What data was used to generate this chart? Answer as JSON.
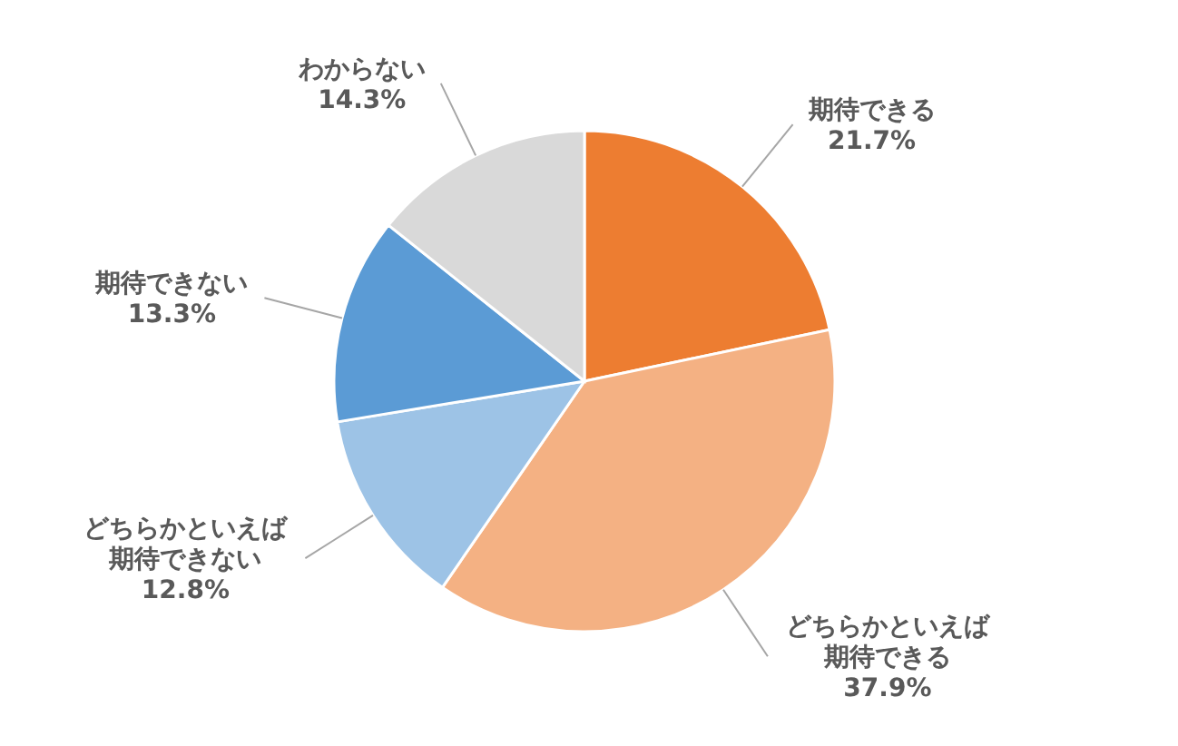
{
  "chart_data": {
    "type": "pie",
    "categories": [
      "期待できる",
      "どちらかといえば期待できる",
      "どちらかといえば期待できない",
      "期待できない",
      "わからない"
    ],
    "values": [
      21.7,
      37.9,
      12.8,
      13.3,
      14.3
    ],
    "colors": [
      "#ed7d31",
      "#f4b183",
      "#9dc3e6",
      "#5b9bd5",
      "#d9d9d9"
    ],
    "value_labels": [
      "21.7%",
      "37.9%",
      "12.8%",
      "13.3%",
      "14.3%"
    ],
    "legend": false
  }
}
